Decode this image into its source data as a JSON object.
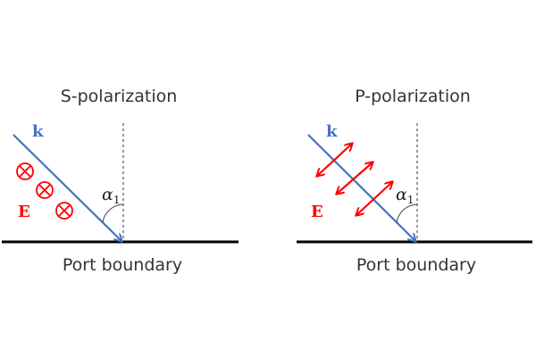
{
  "colors": {
    "wave_vector": "#4472c4",
    "electric_field": "#ff0000",
    "boundary": "#000000"
  },
  "panels": [
    {
      "title": "S-polarization",
      "wave_vector_label": "k",
      "field_label": "E",
      "angle_label": "α",
      "angle_subscript": "1",
      "boundary_label": "Port boundary",
      "field_symbol": "into-page-cross-circle-icon"
    },
    {
      "title": "P-polarization",
      "wave_vector_label": "k",
      "field_label": "E",
      "angle_label": "α",
      "angle_subscript": "1",
      "boundary_label": "Port boundary",
      "field_symbol": "double-arrow-icon"
    }
  ]
}
